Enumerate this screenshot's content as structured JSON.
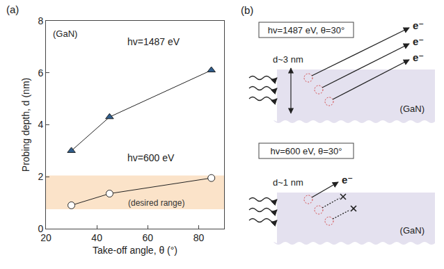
{
  "chart_data": {
    "type": "line",
    "panel_label": "(a)",
    "inner_label": "(GaN)",
    "x_label": "Take-off angle, θ (°)",
    "y_label": "Probing depth, d (nm)",
    "x": [
      30,
      45,
      85
    ],
    "series": [
      {
        "name": "hv=1487 eV",
        "color": "#2f5d8c",
        "marker": "triangle",
        "values": [
          3.0,
          4.3,
          6.1
        ]
      },
      {
        "name": "hv=600 eV",
        "color": "#ffffff",
        "marker": "circle",
        "values": [
          0.9,
          1.35,
          1.95
        ]
      }
    ],
    "desired_range": {
      "label": "(desired range)",
      "values": [
        0.75,
        2.05
      ],
      "color": "#fbe3c9"
    },
    "xlim": [
      20,
      90
    ],
    "xticks": [
      20,
      40,
      60,
      80
    ],
    "ylim": [
      0,
      8
    ],
    "yticks": [
      0,
      2,
      4,
      6,
      8
    ],
    "grid": false
  },
  "diagram": {
    "panel_label": "(b)",
    "panels": [
      {
        "title": "hv=1487 eV, θ=30°",
        "depth": "d~3 nm",
        "material": "(GaN)",
        "electrons": [
          "e⁻",
          "e⁻",
          "e⁻"
        ]
      },
      {
        "title": "hv=600 eV, θ=30°",
        "depth": "d~1 nm",
        "material": "(GaN)",
        "electrons": [
          "e⁻"
        ]
      }
    ]
  }
}
